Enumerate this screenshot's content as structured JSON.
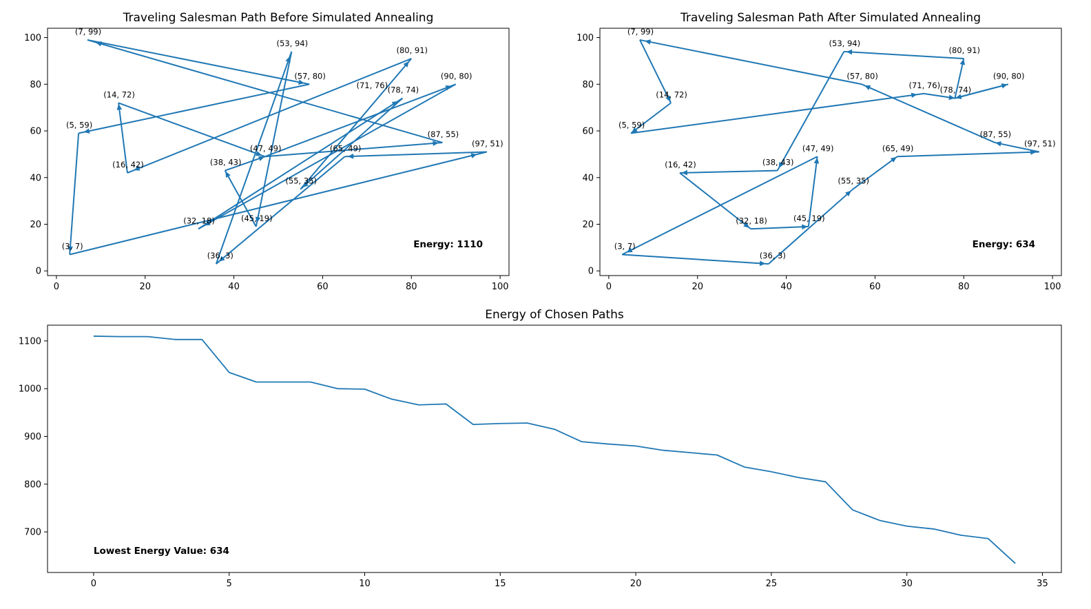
{
  "chart_data": [
    {
      "type": "line",
      "title": "Traveling Salesman Path Before Simulated Annealing",
      "xlabel": "",
      "ylabel": "",
      "xlim": [
        -2,
        102
      ],
      "ylim": [
        -2,
        104
      ],
      "xticks": [
        0,
        20,
        40,
        60,
        80,
        100
      ],
      "yticks": [
        0,
        20,
        40,
        60,
        80,
        100
      ],
      "series": [
        {
          "color": "#1f77b4",
          "path": [
            [
              87,
              55
            ],
            [
              7,
              99
            ],
            [
              57,
              80
            ],
            [
              5,
              59
            ],
            [
              3,
              7
            ],
            [
              97,
              51
            ],
            [
              65,
              49
            ],
            [
              36,
              3
            ],
            [
              53,
              94
            ],
            [
              45,
              19
            ],
            [
              38,
              43
            ],
            [
              47,
              49
            ],
            [
              90,
              80
            ],
            [
              32,
              18
            ],
            [
              78,
              74
            ],
            [
              55,
              35
            ],
            [
              80,
              91
            ],
            [
              16,
              42
            ],
            [
              14,
              72
            ],
            [
              47,
              49
            ],
            [
              87,
              55
            ]
          ]
        }
      ],
      "point_labels": [
        "(7, 99)",
        "(53, 94)",
        "(80, 91)",
        "(57, 80)",
        "(90, 80)",
        "(71, 76)",
        "(78, 74)",
        "(14, 72)",
        "(5, 59)",
        "(87, 55)",
        "(97, 51)",
        "(47, 49)",
        "(65, 49)",
        "(38, 43)",
        "(16, 42)",
        "(55, 35)",
        "(32, 18)",
        "(45, 19)",
        "(3, 7)",
        "(36, 3)"
      ],
      "annotation": "Energy: 1110"
    },
    {
      "type": "line",
      "title": "Traveling Salesman Path After Simulated Annealing",
      "xlabel": "",
      "ylabel": "",
      "xlim": [
        -2,
        102
      ],
      "ylim": [
        -2,
        104
      ],
      "xticks": [
        0,
        20,
        40,
        60,
        80,
        100
      ],
      "yticks": [
        0,
        20,
        40,
        60,
        80,
        100
      ],
      "series": [
        {
          "color": "#1f77b4",
          "path": [
            [
              97,
              51
            ],
            [
              87,
              55
            ],
            [
              57,
              80
            ],
            [
              7,
              99
            ],
            [
              14,
              72
            ],
            [
              5,
              59
            ],
            [
              71,
              76
            ],
            [
              78,
              74
            ],
            [
              90,
              80
            ],
            [
              78,
              74
            ],
            [
              80,
              91
            ],
            [
              53,
              94
            ],
            [
              38,
              43
            ],
            [
              16,
              42
            ],
            [
              32,
              18
            ],
            [
              45,
              19
            ],
            [
              47,
              49
            ],
            [
              3,
              7
            ],
            [
              36,
              3
            ],
            [
              55,
              35
            ],
            [
              65,
              49
            ],
            [
              97,
              51
            ]
          ]
        }
      ],
      "point_labels": [
        "(7, 99)",
        "(53, 94)",
        "(80, 91)",
        "(57, 80)",
        "(90, 80)",
        "(71, 76)",
        "(78, 74)",
        "(14, 72)",
        "(5, 59)",
        "(87, 55)",
        "(97, 51)",
        "(47, 49)",
        "(65, 49)",
        "(38, 43)",
        "(16, 42)",
        "(55, 35)",
        "(32, 18)",
        "(45, 19)",
        "(3, 7)",
        "(36, 3)"
      ],
      "annotation": "Energy: 634"
    },
    {
      "type": "line",
      "title": "Energy of Chosen Paths",
      "xlabel": "",
      "ylabel": "",
      "xlim": [
        -1.7,
        35.7
      ],
      "ylim": [
        615,
        1133
      ],
      "xticks": [
        0,
        5,
        10,
        15,
        20,
        25,
        30,
        35
      ],
      "yticks": [
        700,
        800,
        900,
        1000,
        1100
      ],
      "series": [
        {
          "color": "#1f77b4",
          "x": [
            0,
            1,
            2,
            3,
            4,
            5,
            6,
            7,
            8,
            9,
            10,
            11,
            12,
            13,
            14,
            15,
            16,
            17,
            18,
            19,
            20,
            21,
            22,
            23,
            24,
            25,
            26,
            27,
            28,
            29,
            30,
            31,
            32,
            33,
            34
          ],
          "y": [
            1110,
            1109,
            1109,
            1103,
            1103,
            1034,
            1014,
            1014,
            1014,
            1000,
            999,
            978,
            966,
            968,
            925,
            927,
            928,
            915,
            889,
            884,
            880,
            871,
            866,
            861,
            836,
            826,
            814,
            805,
            746,
            724,
            712,
            706,
            693,
            686,
            634
          ]
        }
      ],
      "annotation": "Lowest Energy Value: 634"
    }
  ]
}
